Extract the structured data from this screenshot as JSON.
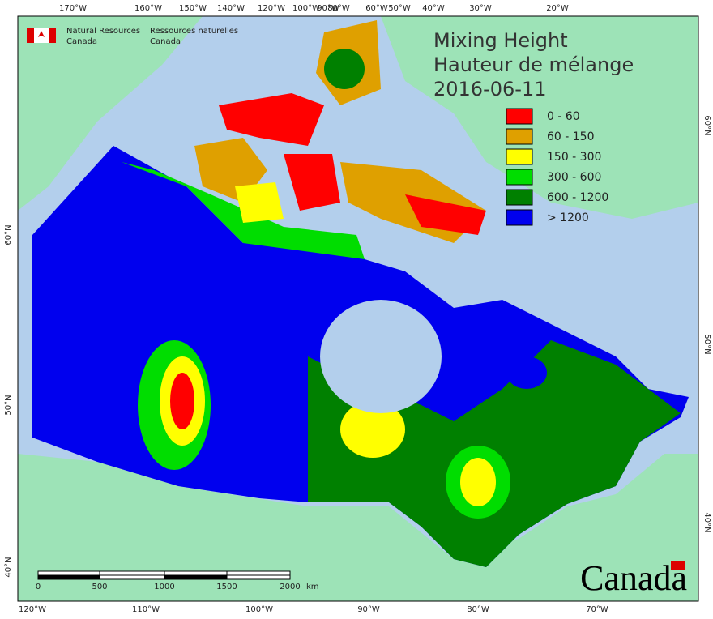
{
  "header": {
    "agency_en": [
      "Natural Resources",
      "Canada"
    ],
    "agency_fr": [
      "Ressources naturelles",
      "Canada"
    ]
  },
  "title": [
    "Mixing Height",
    "Hauteur de mélange",
    "2016-06-11"
  ],
  "legend": [
    {
      "label": "0 - 60",
      "color": "#ff0000"
    },
    {
      "label": "60 - 150",
      "color": "#dfa000"
    },
    {
      "label": "150 - 300",
      "color": "#ffff00"
    },
    {
      "label": "300 - 600",
      "color": "#00dd00"
    },
    {
      "label": "600 - 1200",
      "color": "#008000"
    },
    {
      "label": "> 1200",
      "color": "#0000ee"
    }
  ],
  "top_axis": [
    "170°W",
    "160°W",
    "150°W",
    "140°W",
    "120°W",
    "100°W",
    "90°W",
    "80°W",
    "60°W",
    "50°W",
    "40°W",
    "30°W",
    "20°W"
  ],
  "bottom_axis": [
    "120°W",
    "110°W",
    "100°W",
    "90°W",
    "80°W",
    "70°W"
  ],
  "left_axis": [
    "60°N",
    "50°N",
    "40°N"
  ],
  "right_axis": [
    "60°N",
    "50°N",
    "40°N"
  ],
  "scale_bar": {
    "labels": [
      "0",
      "500",
      "1000",
      "1500",
      "2000"
    ],
    "unit": "km"
  },
  "wordmark": "Canada"
}
